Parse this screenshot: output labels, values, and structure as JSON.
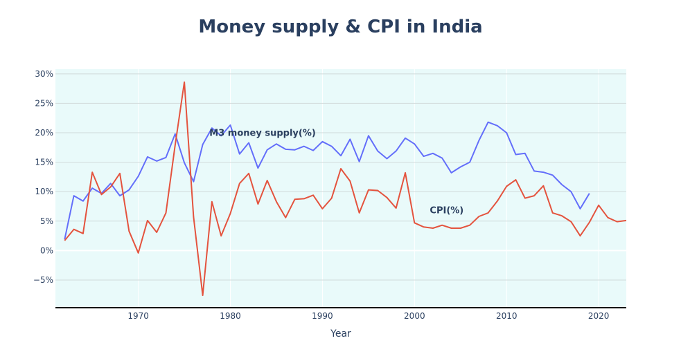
{
  "chart_data": {
    "type": "line",
    "title": "Money supply & CPI in India",
    "xlabel": "Year",
    "ylabel": "",
    "xlim": [
      1961.0,
      2023.0
    ],
    "ylim": [
      -9.7,
      30.8
    ],
    "x_ticks": [
      1970,
      1980,
      1990,
      2000,
      2010,
      2020
    ],
    "y_ticks": [
      {
        "value": 30,
        "label": "30%"
      },
      {
        "value": 25,
        "label": "25%"
      },
      {
        "value": 20,
        "label": "20%"
      },
      {
        "value": 15,
        "label": "15%"
      },
      {
        "value": 10,
        "label": "10%"
      },
      {
        "value": 5,
        "label": "5%"
      },
      {
        "value": 0,
        "label": "0%"
      },
      {
        "value": -5,
        "label": "−5%"
      }
    ],
    "grid": true,
    "legend": false,
    "colors": {
      "plot_bg": "#e9fafa",
      "grid": "#d0dada",
      "zero_line": "#ffffff",
      "axis_line": "#000000",
      "text": "#2a3f5f"
    },
    "series": [
      {
        "name": "M3 money supply(%)",
        "color": "#636efa",
        "x": [
          1962,
          1963,
          1964,
          1965,
          1966,
          1967,
          1968,
          1969,
          1970,
          1971,
          1972,
          1973,
          1974,
          1975,
          1976,
          1977,
          1978,
          1979,
          1980,
          1981,
          1982,
          1983,
          1984,
          1985,
          1986,
          1987,
          1988,
          1989,
          1990,
          1991,
          1992,
          1993,
          1994,
          1995,
          1996,
          1997,
          1998,
          1999,
          2000,
          2001,
          2002,
          2003,
          2004,
          2005,
          2006,
          2007,
          2008,
          2009,
          2010,
          2011,
          2012,
          2013,
          2014,
          2015,
          2016,
          2017,
          2018,
          2019
        ],
        "values": [
          1.9,
          9.3,
          8.4,
          10.6,
          9.7,
          11.4,
          9.3,
          10.3,
          12.6,
          15.9,
          15.2,
          15.8,
          19.8,
          14.9,
          11.7,
          18.0,
          20.8,
          19.5,
          21.3,
          16.4,
          18.3,
          14.0,
          17.1,
          18.1,
          17.2,
          17.1,
          17.7,
          17.0,
          18.5,
          17.7,
          16.1,
          18.9,
          15.1,
          19.5,
          16.9,
          15.6,
          16.9,
          19.1,
          18.1,
          16.0,
          16.5,
          15.7,
          13.2,
          14.2,
          15.0,
          18.7,
          21.8,
          21.2,
          20.0,
          16.3,
          16.5,
          13.5,
          13.3,
          12.8,
          11.2,
          10.0,
          7.1,
          9.7
        ]
      },
      {
        "name": "CPI(%)",
        "color": "#e4533e",
        "x": [
          1962,
          1963,
          1964,
          1965,
          1966,
          1967,
          1968,
          1969,
          1970,
          1971,
          1972,
          1973,
          1974,
          1975,
          1976,
          1977,
          1978,
          1979,
          1980,
          1981,
          1982,
          1983,
          1984,
          1985,
          1986,
          1987,
          1988,
          1989,
          1990,
          1991,
          1992,
          1993,
          1994,
          1995,
          1996,
          1997,
          1998,
          1999,
          2000,
          2001,
          2002,
          2003,
          2004,
          2005,
          2006,
          2007,
          2008,
          2009,
          2010,
          2011,
          2012,
          2013,
          2014,
          2015,
          2016,
          2017,
          2018,
          2019,
          2020,
          2021,
          2022,
          2023
        ],
        "values": [
          1.7,
          3.6,
          2.9,
          13.3,
          9.5,
          10.8,
          13.1,
          3.3,
          -0.4,
          5.1,
          3.1,
          6.4,
          17.9,
          28.6,
          5.7,
          -7.6,
          8.3,
          2.5,
          6.3,
          11.4,
          13.1,
          7.9,
          11.9,
          8.3,
          5.6,
          8.7,
          8.8,
          9.4,
          7.1,
          8.9,
          13.9,
          11.8,
          6.4,
          10.3,
          10.2,
          9.0,
          7.2,
          13.2,
          4.7,
          4.0,
          3.8,
          4.3,
          3.8,
          3.8,
          4.3,
          5.8,
          6.4,
          8.4,
          10.9,
          12.0,
          8.9,
          9.3,
          11.0,
          6.4,
          5.9,
          4.9,
          2.5,
          4.8,
          7.7,
          5.6,
          4.9,
          5.1
        ]
      }
    ],
    "annotations": [
      {
        "text": "M3 money supply(%)",
        "x": 1983.5,
        "y": 19.5
      },
      {
        "text": "CPI(%)",
        "x": 2003.5,
        "y": 6.3
      }
    ]
  }
}
